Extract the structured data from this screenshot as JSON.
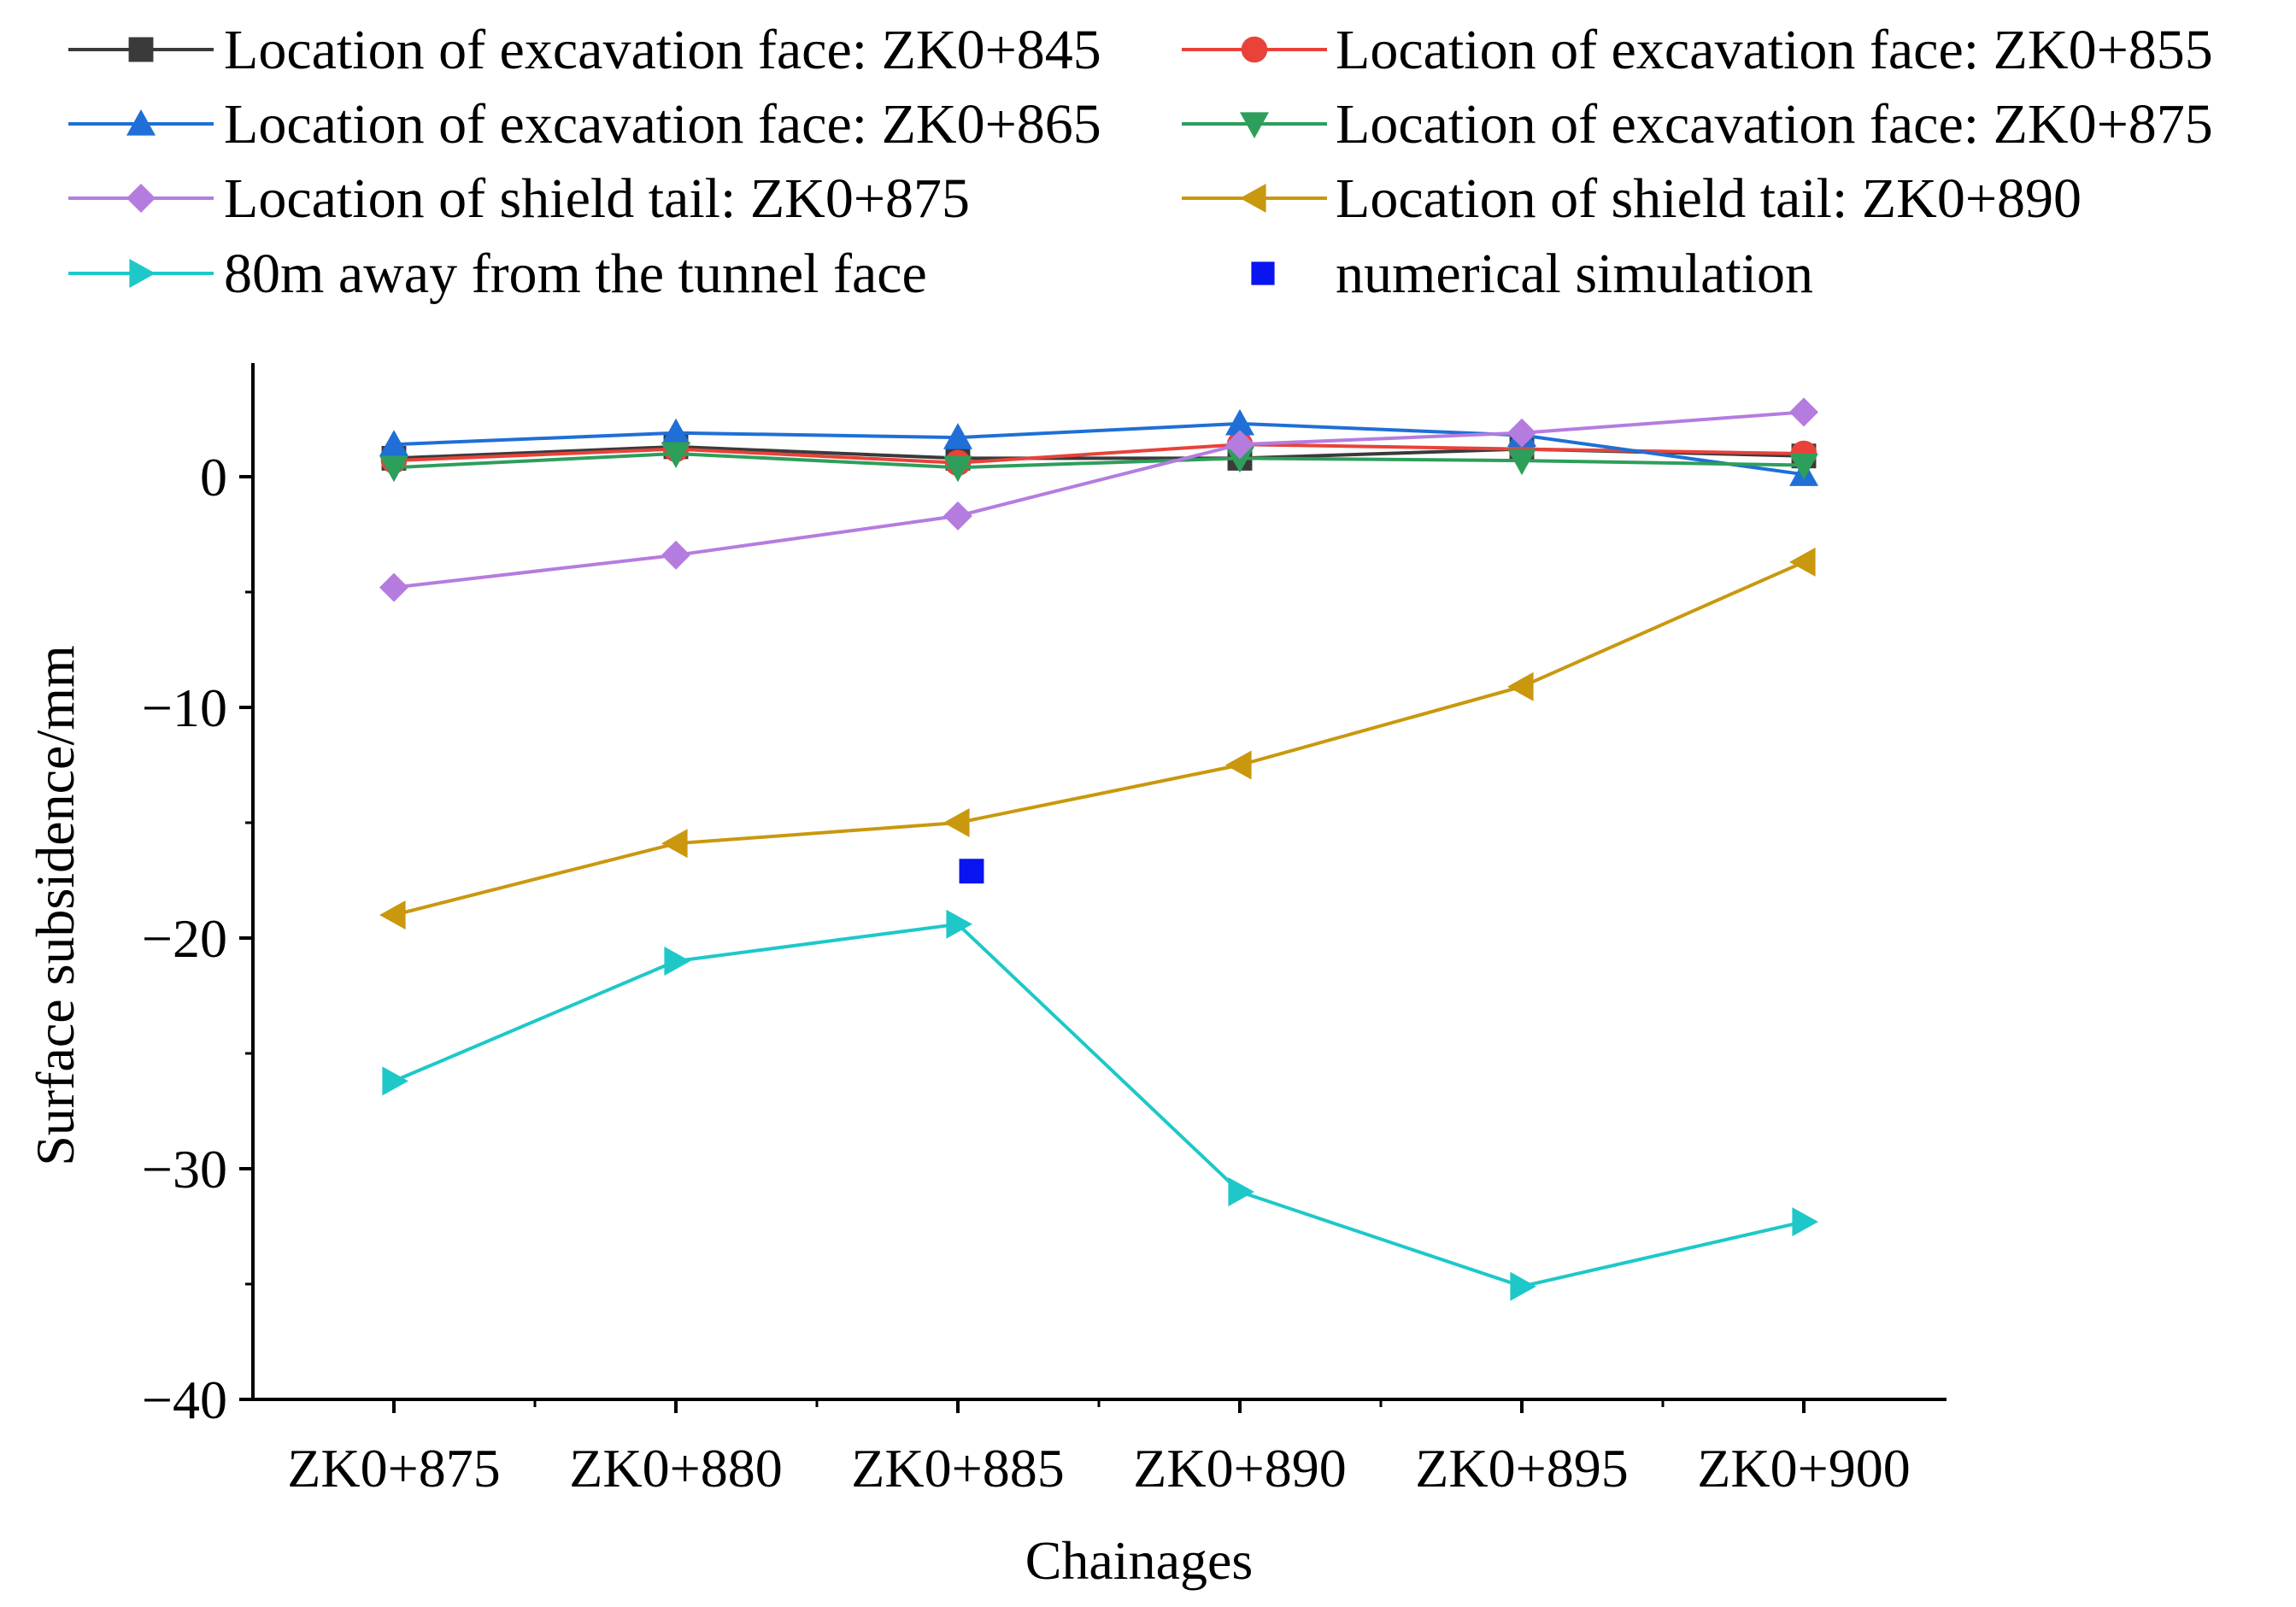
{
  "chart_data": {
    "type": "line",
    "title": "",
    "xlabel": "Chainages",
    "ylabel": "Surface subsidence/mm",
    "categories": [
      "ZK0+875",
      "ZK0+880",
      "ZK0+885",
      "ZK0+890",
      "ZK0+895",
      "ZK0+900"
    ],
    "ylim": [
      -40,
      5
    ],
    "yticks": [
      0,
      -10,
      -20,
      -30,
      -40
    ],
    "ytick_labels": [
      "0",
      "−10",
      "−20",
      "−30",
      "−40"
    ],
    "grid": false,
    "legend_position": "top",
    "series": [
      {
        "name": "Location of excavation face: ZK0+845",
        "color": "#3a3a3a",
        "marker": "square",
        "values": [
          0.8,
          1.3,
          0.8,
          0.8,
          1.2,
          0.9
        ]
      },
      {
        "name": "Location of excavation face: ZK0+855",
        "color": "#e8423a",
        "marker": "circle",
        "values": [
          0.7,
          1.2,
          0.6,
          1.4,
          1.2,
          1.0
        ]
      },
      {
        "name": "Location of excavation face: ZK0+865",
        "color": "#1f6fd6",
        "marker": "triangle-up",
        "values": [
          1.4,
          1.9,
          1.7,
          2.3,
          1.8,
          0.1
        ]
      },
      {
        "name": "Location of excavation face: ZK0+875",
        "color": "#2e9e5b",
        "marker": "triangle-down",
        "values": [
          0.4,
          1.0,
          0.4,
          0.8,
          0.7,
          0.5
        ]
      },
      {
        "name": "Location of shield tail: ZK0+875",
        "color": "#b57ce0",
        "marker": "diamond",
        "values": [
          -4.8,
          -3.4,
          -1.7,
          1.4,
          1.9,
          2.8
        ]
      },
      {
        "name": "Location of shield tail: ZK0+890",
        "color": "#c9980e",
        "marker": "triangle-left",
        "values": [
          -19.0,
          -15.9,
          -15.0,
          -12.5,
          -9.1,
          -3.7
        ]
      },
      {
        "name": "80m away from the tunnel face",
        "color": "#1ec8c8",
        "marker": "triangle-right",
        "values": [
          -26.2,
          -21.0,
          -19.4,
          -31.0,
          -35.1,
          -32.3
        ]
      }
    ],
    "extra_points": [
      {
        "name": "numerical simulation",
        "color": "#0a14f0",
        "marker": "square",
        "x": "ZK0+885",
        "y": -17.1
      }
    ]
  }
}
